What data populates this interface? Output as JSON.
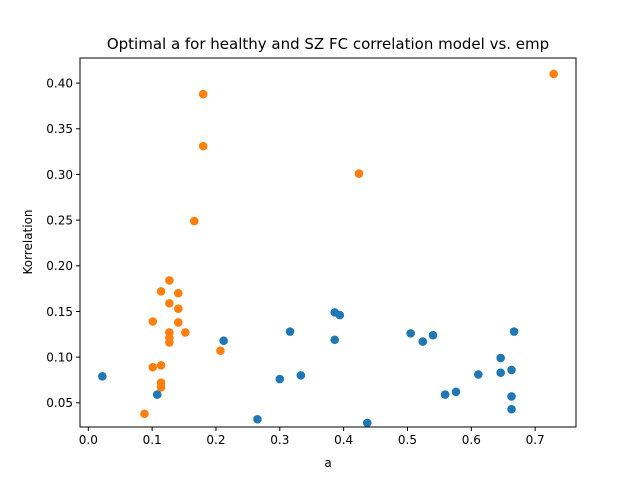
{
  "chart_data": {
    "type": "scatter",
    "title": "Optimal a for healthy and SZ FC correlation model vs. emp",
    "xlabel": "a",
    "ylabel": "Korrelation",
    "xlim": [
      -0.013,
      0.764
    ],
    "ylim": [
      0.0235,
      0.4275
    ],
    "xticks": [
      "0.0",
      "0.1",
      "0.2",
      "0.3",
      "0.4",
      "0.5",
      "0.6",
      "0.7"
    ],
    "xtick_values": [
      0.0,
      0.1,
      0.2,
      0.3,
      0.4,
      0.5,
      0.6,
      0.7
    ],
    "yticks": [
      "0.05",
      "0.10",
      "0.15",
      "0.20",
      "0.25",
      "0.30",
      "0.35",
      "0.40"
    ],
    "ytick_values": [
      0.05,
      0.1,
      0.15,
      0.2,
      0.25,
      0.3,
      0.35,
      0.4
    ],
    "grid": false,
    "series": [
      {
        "color": "#1f77b4",
        "points": [
          [
            0.022,
            0.079
          ],
          [
            0.108,
            0.059
          ],
          [
            0.212,
            0.118
          ],
          [
            0.265,
            0.032
          ],
          [
            0.3,
            0.076
          ],
          [
            0.316,
            0.128
          ],
          [
            0.333,
            0.08
          ],
          [
            0.386,
            0.149
          ],
          [
            0.394,
            0.146
          ],
          [
            0.386,
            0.119
          ],
          [
            0.437,
            0.028
          ],
          [
            0.505,
            0.126
          ],
          [
            0.524,
            0.117
          ],
          [
            0.54,
            0.124
          ],
          [
            0.559,
            0.059
          ],
          [
            0.576,
            0.062
          ],
          [
            0.611,
            0.081
          ],
          [
            0.646,
            0.099
          ],
          [
            0.646,
            0.083
          ],
          [
            0.663,
            0.086
          ],
          [
            0.667,
            0.128
          ],
          [
            0.663,
            0.057
          ],
          [
            0.663,
            0.043
          ]
        ]
      },
      {
        "color": "#ff7f0e",
        "points": [
          [
            0.088,
            0.038
          ],
          [
            0.101,
            0.089
          ],
          [
            0.101,
            0.139
          ],
          [
            0.114,
            0.091
          ],
          [
            0.114,
            0.072
          ],
          [
            0.114,
            0.067
          ],
          [
            0.114,
            0.172
          ],
          [
            0.127,
            0.184
          ],
          [
            0.127,
            0.159
          ],
          [
            0.127,
            0.127
          ],
          [
            0.127,
            0.121
          ],
          [
            0.127,
            0.116
          ],
          [
            0.141,
            0.17
          ],
          [
            0.141,
            0.153
          ],
          [
            0.141,
            0.138
          ],
          [
            0.152,
            0.127
          ],
          [
            0.166,
            0.249
          ],
          [
            0.18,
            0.388
          ],
          [
            0.18,
            0.331
          ],
          [
            0.207,
            0.107
          ],
          [
            0.424,
            0.301
          ],
          [
            0.729,
            0.41
          ]
        ]
      }
    ]
  }
}
